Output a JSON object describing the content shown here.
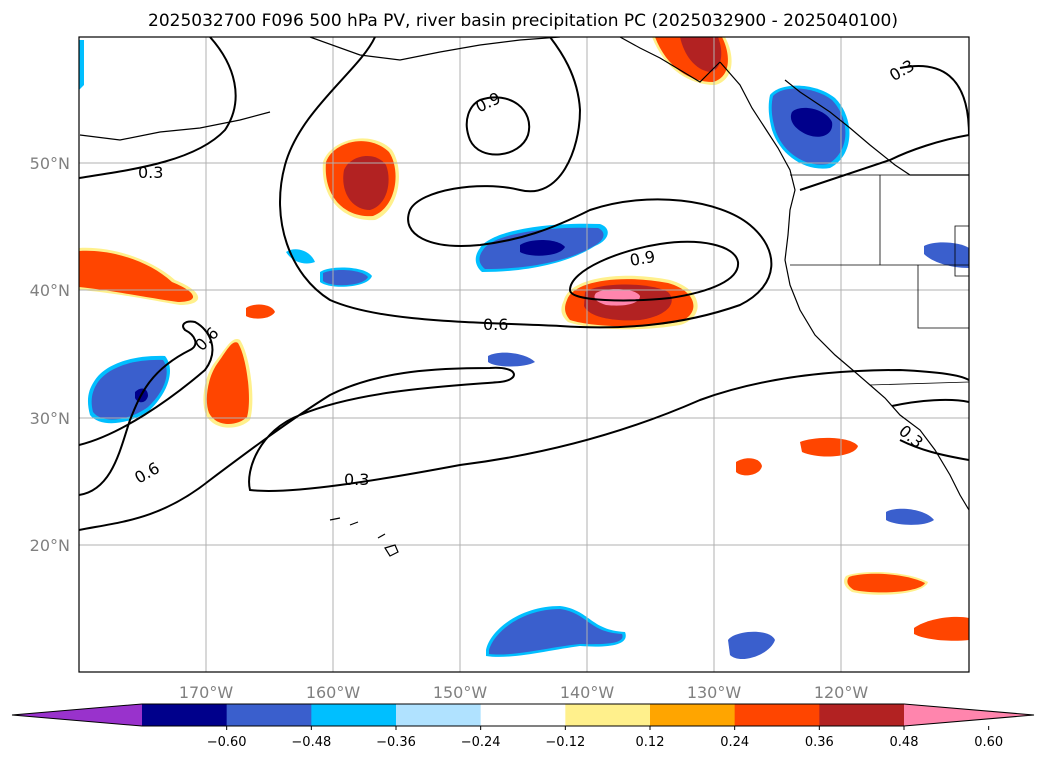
{
  "title": "2025032700 F096 500 hPa PV, river basin precipitation PC (2025032900 - 2025040100)",
  "map": {
    "lon_ticks": [
      "170°W",
      "160°W",
      "150°W",
      "140°W",
      "130°W",
      "120°W"
    ],
    "lat_ticks": [
      "50°N",
      "40°N",
      "30°N",
      "20°N"
    ],
    "gridlines": true
  },
  "contour_labels": [
    "0.3",
    "0.9",
    "0.6",
    "0.6",
    "0.3",
    "0.9",
    "0.6",
    "0.3",
    "0.3"
  ],
  "colorbar": {
    "ticks": [
      "−0.60",
      "−0.48",
      "−0.36",
      "−0.24",
      "−0.12",
      "0.12",
      "0.24",
      "0.36",
      "0.48",
      "0.60"
    ],
    "colors": [
      "#9932cc",
      "#00008b",
      "#3a5fcd",
      "#00bfff",
      "#b0e2ff",
      "#ffffff",
      "#fff08c",
      "#ffa500",
      "#ff4500",
      "#b22222",
      "#ff85ad"
    ]
  }
}
